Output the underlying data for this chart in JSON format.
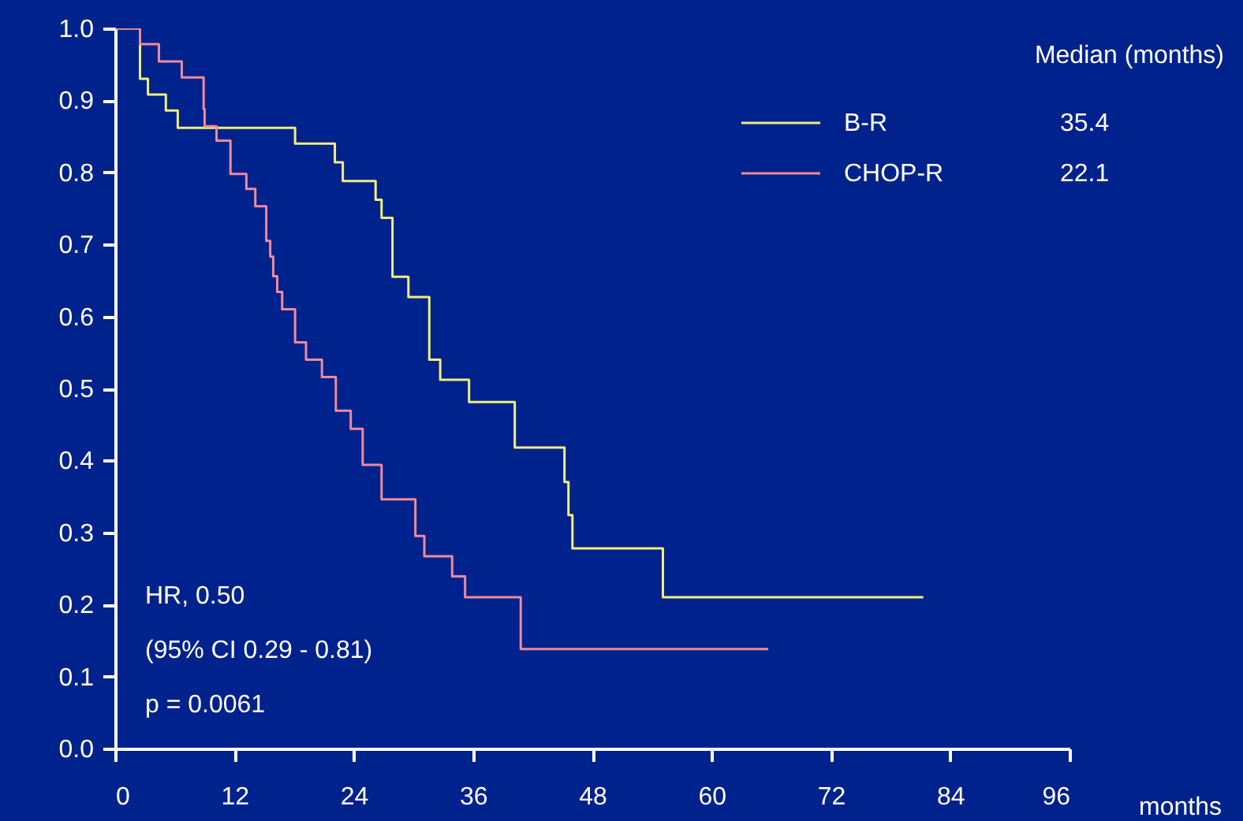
{
  "chart_data": {
    "type": "step",
    "xlabel": "months",
    "legend_title": "Median (months)",
    "legend": "top right",
    "grid": false,
    "xlim": [
      0,
      96
    ],
    "xticks": [
      0,
      12,
      24,
      36,
      48,
      60,
      72,
      84,
      96
    ],
    "ylim": [
      0,
      1
    ],
    "yticks": [
      {
        "value": 0,
        "label": "0.0"
      },
      {
        "value": 0.1,
        "label": "0.1"
      },
      {
        "value": 0.2,
        "label": "0.2"
      },
      {
        "value": 0.3,
        "label": "0.3"
      },
      {
        "value": 0.4,
        "label": "0.4"
      },
      {
        "value": 0.5,
        "label": "0.5"
      },
      {
        "value": 0.6,
        "label": "0.6"
      },
      {
        "value": 0.7,
        "label": "0.7"
      },
      {
        "value": 0.8,
        "label": "0.8"
      },
      {
        "value": 0.9,
        "label": "0.9"
      },
      {
        "value": 1,
        "label": "1.0"
      }
    ],
    "series": [
      {
        "name": "B-R",
        "color": "#f0f07a",
        "x": [
          0,
          2.5,
          3.3,
          5.1,
          6.3,
          18.1,
          22.1,
          22.9,
          26.2,
          26.8,
          27.9,
          29.5,
          31.6,
          32.7,
          35.6,
          40.2,
          45.2,
          45.6,
          46.0,
          55.1,
          81.3
        ],
        "values": [
          1,
          0.93,
          0.908,
          0.886,
          0.862,
          0.84,
          0.814,
          0.788,
          0.762,
          0.737,
          0.655,
          0.627,
          0.54,
          0.512,
          0.481,
          0.418,
          0.37,
          0.324,
          0.278,
          0.21,
          0.21
        ]
      },
      {
        "name": "CHOP-R",
        "color": "#f08a9a",
        "x": [
          0,
          2.5,
          4.4,
          6.7,
          8.9,
          9.0,
          10.2,
          11.6,
          13.2,
          14.1,
          15.2,
          15.6,
          15.9,
          16.3,
          16.8,
          18.1,
          19.2,
          20.8,
          22.2,
          23.7,
          24.9,
          26.8,
          30.2,
          31.1,
          33.9,
          35.2,
          40.8,
          65.7
        ],
        "values": [
          1,
          0.978,
          0.954,
          0.932,
          0.888,
          0.864,
          0.844,
          0.798,
          0.777,
          0.753,
          0.705,
          0.683,
          0.656,
          0.634,
          0.61,
          0.564,
          0.54,
          0.516,
          0.469,
          0.444,
          0.394,
          0.346,
          0.295,
          0.267,
          0.239,
          0.21,
          0.138,
          0.138
        ]
      }
    ],
    "annotations": [
      "35.4",
      "22.1",
      "HR, 0.50",
      "(95% CI 0.29 - 0.81)",
      "p = 0.0061"
    ]
  }
}
